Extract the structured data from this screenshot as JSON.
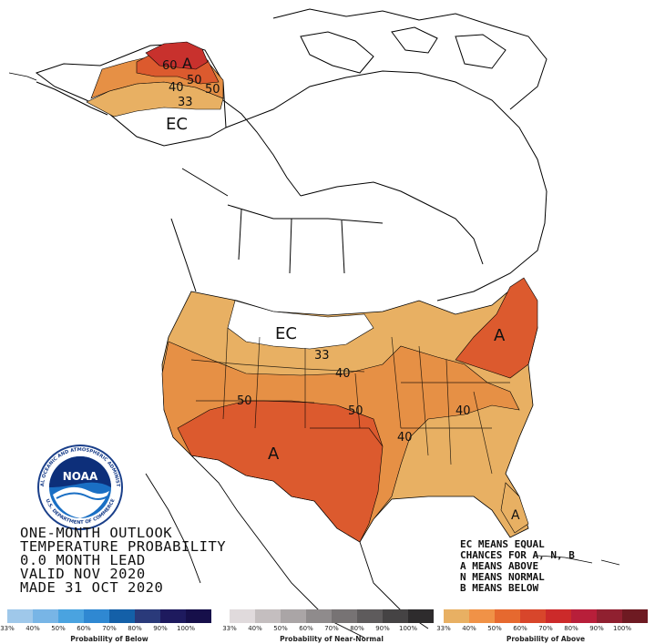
{
  "title_lines": [
    "ONE-MONTH OUTLOOK",
    "TEMPERATURE PROBABILITY",
    "0.0 MONTH LEAD",
    "VALID NOV 2020",
    "MADE 31 OCT 2020"
  ],
  "legend_lines": [
    "EC MEANS EQUAL",
    "CHANCES FOR A, N, B",
    "A MEANS ABOVE",
    "N MEANS NORMAL",
    "B MEANS BELOW"
  ],
  "map_labels": {
    "ec_alaska": "EC",
    "ec_conus": "EC",
    "a_alaska": "A",
    "a_northeast": "A",
    "a_southwest": "A",
    "a_florida": "A",
    "ak_60": "60",
    "ak_50": "50",
    "ak_40": "40",
    "ak_50b": "50",
    "ak_33": "33",
    "c_33": "33",
    "c_40": "40",
    "c_50w": "50",
    "c_50e": "50",
    "c_40e": "40",
    "c_40se": "40"
  },
  "scales": [
    {
      "caption": "Probability of Below",
      "colors": [
        "#9fc8ea",
        "#78b5e6",
        "#4aa3e0",
        "#2f88d2",
        "#1460a8",
        "#2a3a7a",
        "#1e1a5e",
        "#160f4a"
      ],
      "ticks": [
        "33%",
        "40%",
        "50%",
        "60%",
        "70%",
        "80%",
        "90%",
        "100%"
      ]
    },
    {
      "caption": "Probability of Near-Normal",
      "colors": [
        "#e0dadc",
        "#c4bebf",
        "#aaa5a6",
        "#8f8b8c",
        "#777374",
        "#5e5b5c",
        "#454344",
        "#2e2c2d"
      ],
      "ticks": [
        "33%",
        "40%",
        "50%",
        "60%",
        "70%",
        "80%",
        "90%",
        "100%"
      ]
    },
    {
      "caption": "Probability of Above",
      "colors": [
        "#e8b063",
        "#f09247",
        "#e6692f",
        "#d8462b",
        "#cc2a2a",
        "#b81f3a",
        "#902030",
        "#6e1a22"
      ],
      "ticks": [
        "33%",
        "40%",
        "50%",
        "60%",
        "70%",
        "80%",
        "90%",
        "100%"
      ]
    }
  ],
  "fills": {
    "above_33": "#e8b063",
    "above_40": "#e69045",
    "above_50": "#dc5a2e",
    "above_60": "#c8312d",
    "ocean": "#ffffff",
    "land": "#ffffff"
  },
  "logo": {
    "text": "NOAA",
    "ring_text": "NATIONAL OCEANIC AND ATMOSPHERIC ADMINISTRATION",
    "ring_text_bottom": "U.S. DEPARTMENT OF COMMERCE"
  }
}
